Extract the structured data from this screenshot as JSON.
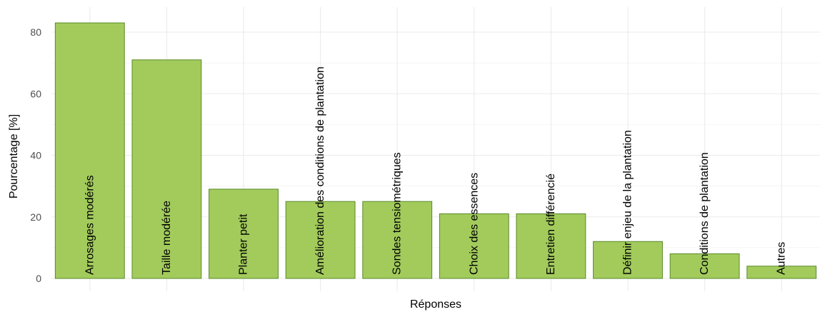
{
  "chart_data": {
    "type": "bar",
    "title": "",
    "xlabel": "Réponses",
    "ylabel": "Pourcentage [%]",
    "ylim": [
      0,
      88
    ],
    "yticks": [
      0,
      20,
      40,
      60,
      80
    ],
    "grid": true,
    "legend": "none",
    "colors": {
      "bar_fill": "#a2cb5c",
      "bar_stroke": "#5a8a2a",
      "grid": "#ebebeb"
    },
    "categories": [
      "Arrosages modérés",
      "Taille modérée",
      "Planter petit",
      "Amélioration des conditions de plantation",
      "Sondes tensiométriques",
      "Choix des essences",
      "Entretien différencié",
      "Définir enjeu de la plantation",
      "Conditions de plantation",
      "Autres"
    ],
    "values": [
      83,
      71,
      29,
      25,
      25,
      21,
      21,
      12,
      8,
      4
    ]
  }
}
